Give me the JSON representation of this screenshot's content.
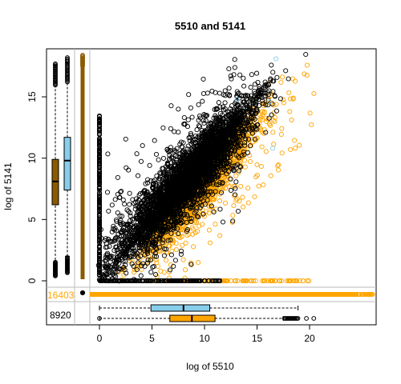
{
  "chart_data": {
    "type": "scatter",
    "title": "5510  and 5141",
    "xlabel": "log of 5510",
    "ylabel": "log of 5141",
    "xlim": [
      -0.5,
      20.8
    ],
    "ylim": [
      -0.4,
      18.6
    ],
    "x_ticks": [
      "0",
      "5",
      "10",
      "15",
      "20"
    ],
    "y_ticks": [
      "0",
      "5",
      "10",
      "15"
    ],
    "x_tick_values": [
      0,
      5,
      10,
      15,
      20
    ],
    "y_tick_values": [
      0,
      5,
      10,
      15
    ],
    "counts": {
      "orange": "16403",
      "black": "8920"
    },
    "colors": {
      "orange": "#FFA500",
      "black": "#000000",
      "skyblue": "#87CEEB",
      "brown": "#8B5A00"
    },
    "boxplots": {
      "x_skyblue": {
        "min": 0,
        "q1": 4.9,
        "median": 8.0,
        "q3": 10.5,
        "max": 18.9
      },
      "x_orange": {
        "min": 0,
        "q1": 6.7,
        "median": 8.8,
        "q3": 11.0,
        "max": 17.5
      },
      "y_black": {
        "min": 0.4,
        "q1": 6.2,
        "median": 8.1,
        "q3": 9.9,
        "max": 17.6
      },
      "y_skyblue": {
        "min": 2.0,
        "q1": 7.4,
        "median": 9.8,
        "q3": 11.7,
        "max": 17.8
      }
    },
    "series": [
      {
        "color": "black",
        "description_points": [
          [
            0,
            0
          ],
          [
            2,
            2
          ],
          [
            5,
            5.2
          ],
          [
            8,
            8.1
          ],
          [
            10,
            10
          ],
          [
            12,
            12.1
          ],
          [
            15,
            15
          ],
          [
            17,
            17.2
          ]
        ]
      },
      {
        "color": "orange",
        "description_points": [
          [
            3,
            2
          ],
          [
            6,
            5
          ],
          [
            9,
            8
          ],
          [
            11,
            9.5
          ],
          [
            13,
            11
          ],
          [
            15,
            12.5
          ],
          [
            17,
            13.5
          ],
          [
            19,
            15
          ]
        ]
      }
    ]
  }
}
